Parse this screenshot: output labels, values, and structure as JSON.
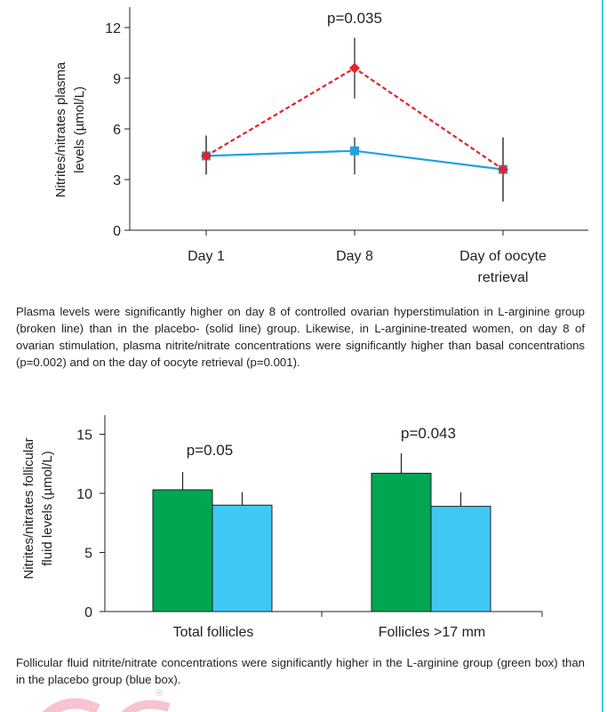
{
  "chart_data": [
    {
      "type": "line",
      "categories": [
        "Day 1",
        "Day 8",
        "Day of oocyte retrieval"
      ],
      "category_lines": [
        [
          "Day 1"
        ],
        [
          "Day 8"
        ],
        [
          "Day of oocyte",
          "retrieval"
        ]
      ],
      "ylabel_lines": [
        "Nitrites/nitrates plasma",
        "levels (µmol/L)"
      ],
      "ylim": [
        0,
        12
      ],
      "yticks": [
        0,
        3,
        6,
        9,
        12
      ],
      "annotation": "p=0.035",
      "series": [
        {
          "style": "broken",
          "color": "#e8202a",
          "marker": "diamond",
          "values": [
            4.4,
            9.6,
            3.6
          ],
          "error_low": [
            3.3,
            7.8,
            1.7
          ],
          "error_high": [
            5.6,
            11.4,
            5.5
          ]
        },
        {
          "style": "solid",
          "color": "#1ea3e0",
          "marker": "square",
          "values": [
            4.4,
            4.7,
            3.6
          ],
          "error_low": [
            3.3,
            3.3,
            1.7
          ],
          "error_high": [
            5.6,
            5.5,
            5.5
          ]
        }
      ],
      "grid": false
    },
    {
      "type": "bar",
      "categories": [
        "Total follicles",
        "Follicles >17 mm"
      ],
      "ylabel_lines": [
        "Nitrites/nitrates follicular",
        "fluid levels (µmol/L)"
      ],
      "ylim": [
        0,
        16
      ],
      "yticks": [
        0,
        5,
        10,
        15
      ],
      "annotations": [
        "p=0.05",
        "p=0.043"
      ],
      "series": [
        {
          "color": "#00a651",
          "values": [
            10.3,
            11.7
          ],
          "error_high": [
            11.8,
            13.4
          ]
        },
        {
          "color": "#40c8f4",
          "values": [
            9.0,
            8.9
          ],
          "error_high": [
            10.1,
            10.1
          ]
        }
      ],
      "grid": false
    }
  ],
  "captions": {
    "caption1": "Plasma levels were significantly higher on day 8 of controlled ovarian hyperstimulation in L-arginine group (broken line) than in the placebo- (solid line) group. Likewise, in L-arginine-treated women, on day 8 of ovarian stimulation, plasma nitrite/nitrate concentrations were significantly higher than basal concentrations (p=0.002) and on the day of oocyte retrieval (p=0.001).",
    "caption2": "Follicular fluid nitrite/nitrate concentrations were significantly higher in the L-arginine group (green box) than in the placebo group (blue box)."
  },
  "watermark": {
    "text": "®",
    "color": "#f4b6c4"
  }
}
